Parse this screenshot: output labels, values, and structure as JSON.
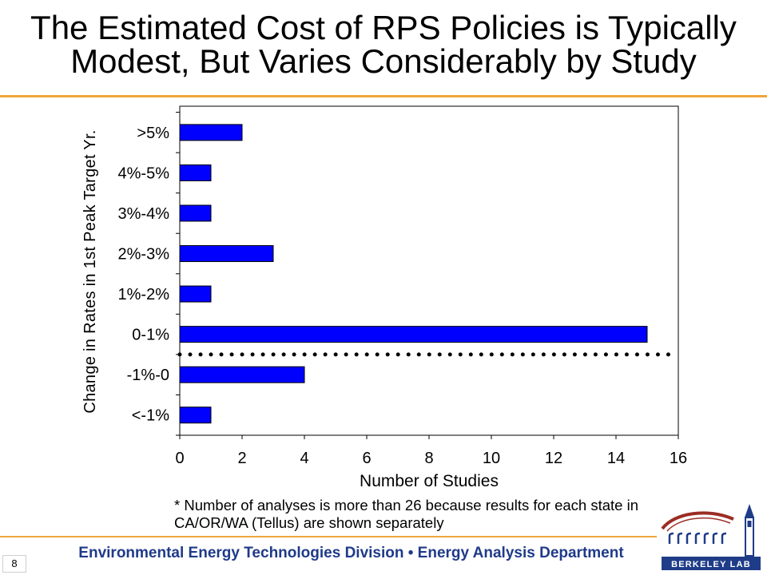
{
  "slide": {
    "title_lines": [
      "The Estimated Cost of RPS Policies is Typically",
      "Modest, But Varies Considerably by Study"
    ],
    "footnote_lines": [
      "* Number of analyses is more than 26 because results for each state in",
      "CA/OR/WA (Tellus) are shown separately"
    ],
    "footer_text": "Environmental Energy Technologies Division • Energy Analysis Department",
    "page_number": "8",
    "logo_icon": "berkeley-lab-logo",
    "logo_text": "BERKELEY LAB"
  },
  "colors": {
    "accent_rule": "#EFA53A",
    "footer_text": "#1F3A89",
    "bar_fill": "#0000FF",
    "logo_blue": "#1F3C88",
    "logo_arch": "#9B2D24"
  },
  "chart_data": {
    "type": "bar",
    "orientation": "horizontal",
    "categories": [
      ">5%",
      "4%-5%",
      "3%-4%",
      "2%-3%",
      "1%-2%",
      "0-1%",
      "-1%-0",
      "<-1%"
    ],
    "values": [
      2,
      1,
      1,
      3,
      1,
      15,
      4,
      1
    ],
    "xlabel": "Number of Studies",
    "ylabel": "Change in Rates in 1st Peak Target Yr.",
    "xlim": [
      0,
      16
    ],
    "xticks": [
      0,
      2,
      4,
      6,
      8,
      10,
      12,
      14,
      16
    ],
    "grid": false,
    "reference_line": {
      "between": [
        "0-1%",
        "-1%-0"
      ],
      "style": "dotted"
    }
  }
}
